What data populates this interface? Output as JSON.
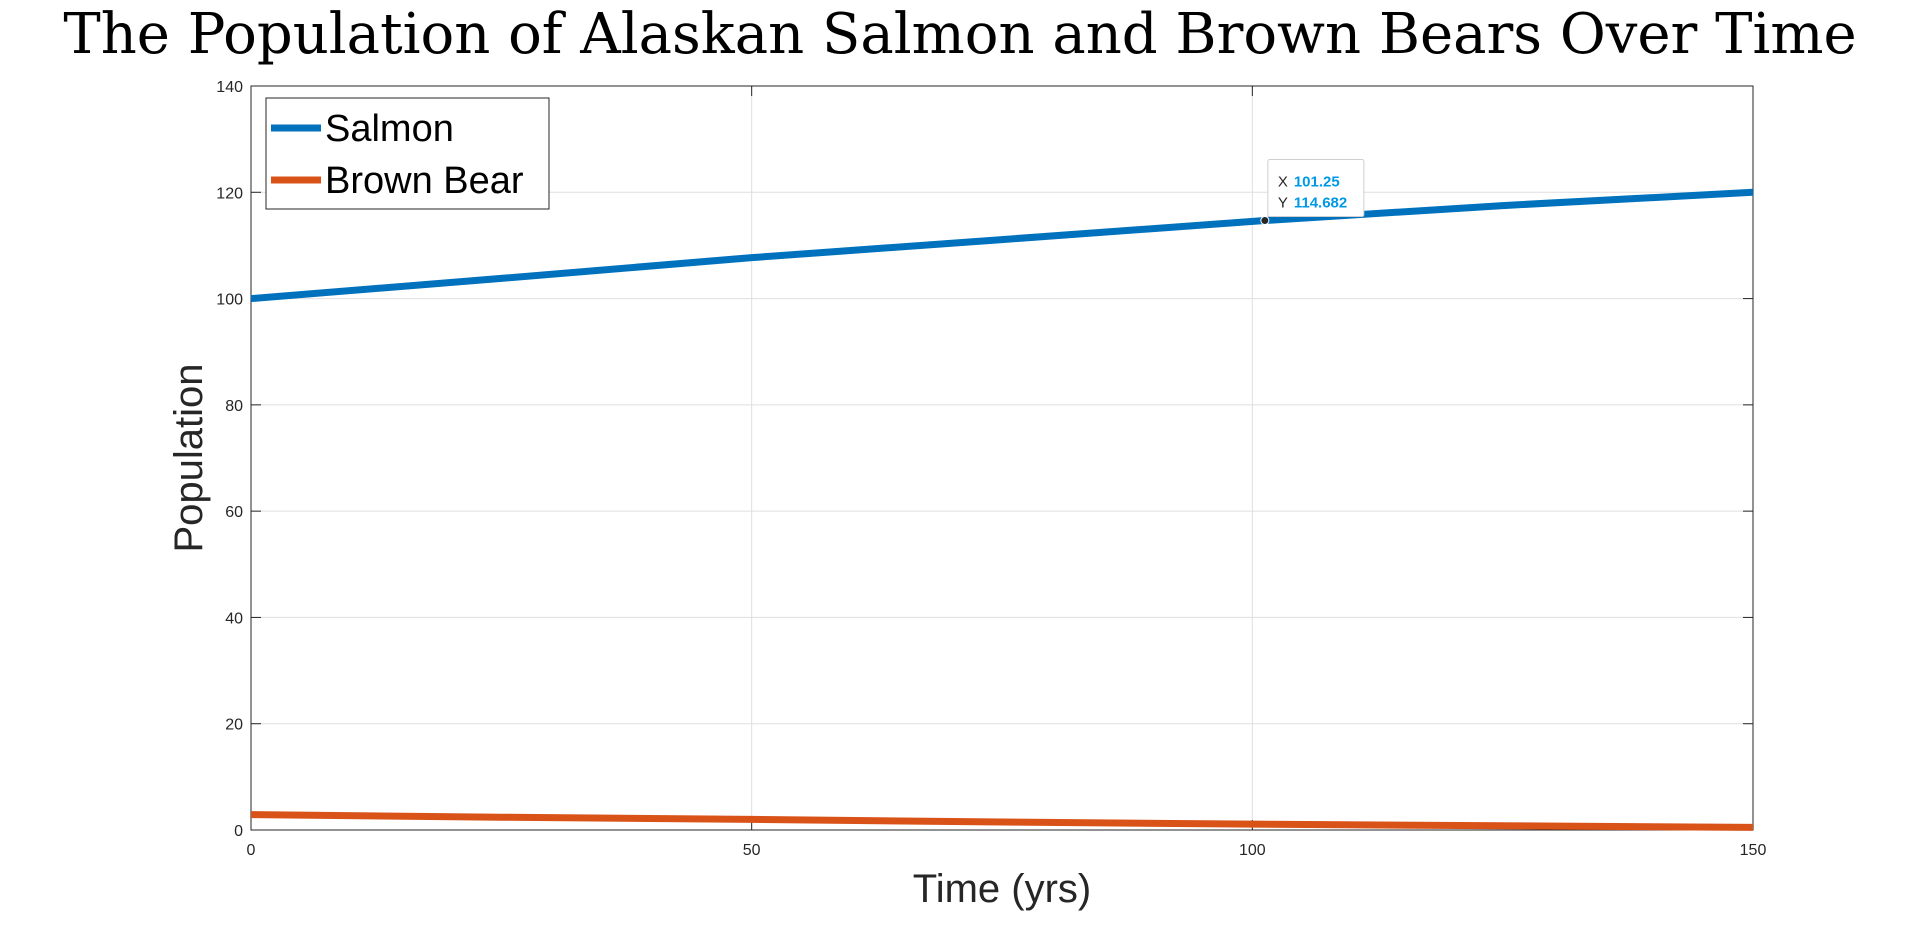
{
  "chart_data": {
    "type": "line",
    "title": "The Population of Alaskan Salmon and Brown Bears Over Time",
    "xlabel": "Time (yrs)",
    "ylabel": "Population",
    "xlim": [
      0,
      150
    ],
    "ylim": [
      0,
      140
    ],
    "xticks": [
      0,
      50,
      100,
      150
    ],
    "yticks": [
      0,
      20,
      40,
      60,
      80,
      100,
      120,
      140
    ],
    "grid": true,
    "legend_position": "top-left",
    "series": [
      {
        "name": "Salmon",
        "color": "#0072BD",
        "x": [
          0,
          25,
          50,
          75,
          101.25,
          125,
          150
        ],
        "y": [
          100,
          103.8,
          107.7,
          111.1,
          114.682,
          117.5,
          120
        ]
      },
      {
        "name": "Brown Bear",
        "color": "#D95319",
        "x": [
          0,
          25,
          50,
          75,
          100,
          125,
          150
        ],
        "y": [
          2.9,
          2.4,
          2.0,
          1.5,
          1.1,
          0.8,
          0.5
        ]
      }
    ],
    "datatip": {
      "x_label": "X",
      "x_value": "101.25",
      "y_label": "Y",
      "y_value": "114.682",
      "x": 101.25,
      "y": 114.682
    }
  }
}
